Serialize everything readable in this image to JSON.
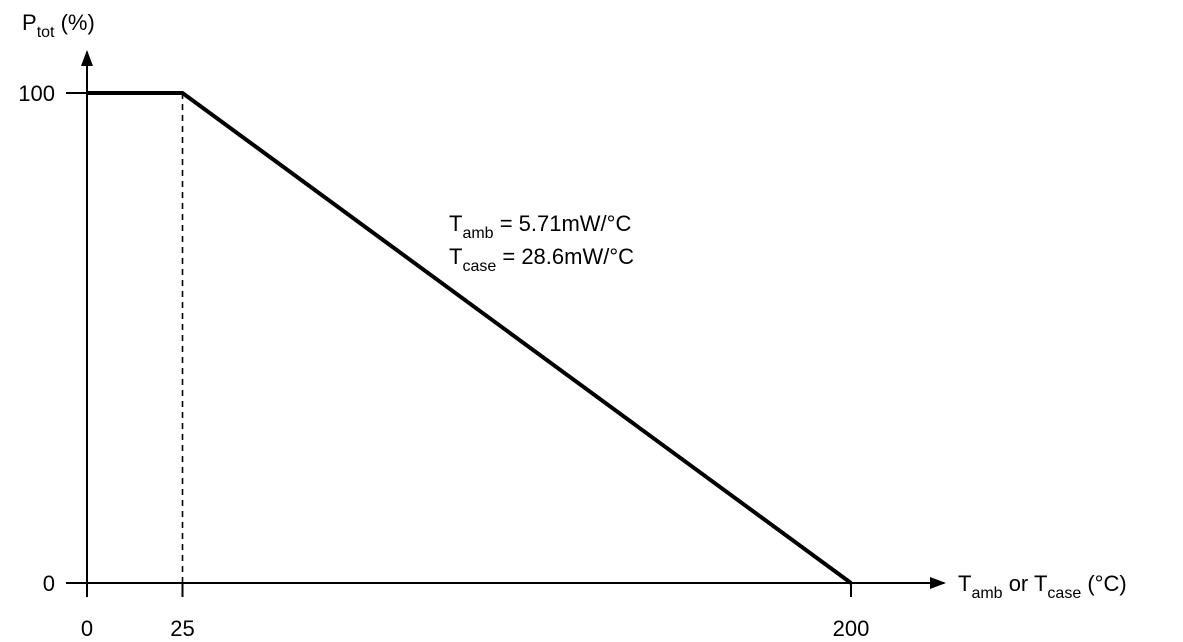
{
  "chart_data": {
    "type": "line",
    "title": "",
    "ylabel": {
      "main": "P",
      "sub": "tot",
      "suffix": " (%)"
    },
    "xlabel": {
      "part1_main": "T",
      "part1_sub": "amb",
      "middle": " or ",
      "part2_main": "T",
      "part2_sub": "case",
      "suffix": " (°C)"
    },
    "xlim": [
      0,
      200
    ],
    "ylim": [
      0,
      100
    ],
    "x_ticks": [
      {
        "value": 0,
        "label": "0"
      },
      {
        "value": 25,
        "label": "25"
      },
      {
        "value": 200,
        "label": "200"
      }
    ],
    "y_ticks": [
      {
        "value": 0,
        "label": "0"
      },
      {
        "value": 100,
        "label": "100"
      }
    ],
    "series": [
      {
        "x": [
          0,
          25,
          200
        ],
        "y": [
          100,
          100,
          0
        ]
      }
    ],
    "reference_lines": [
      {
        "x": 25,
        "y_from": 0,
        "y_to": 100,
        "style": "dashed"
      }
    ],
    "annotations": [
      {
        "main": "T",
        "sub": "amb",
        "text": " = 5.71mW/°C"
      },
      {
        "main": "T",
        "sub": "case",
        "text": " = 28.6mW/°C"
      }
    ],
    "grid": false,
    "colors": {
      "line": "#000000",
      "axis": "#000000",
      "background": "#ffffff"
    }
  }
}
